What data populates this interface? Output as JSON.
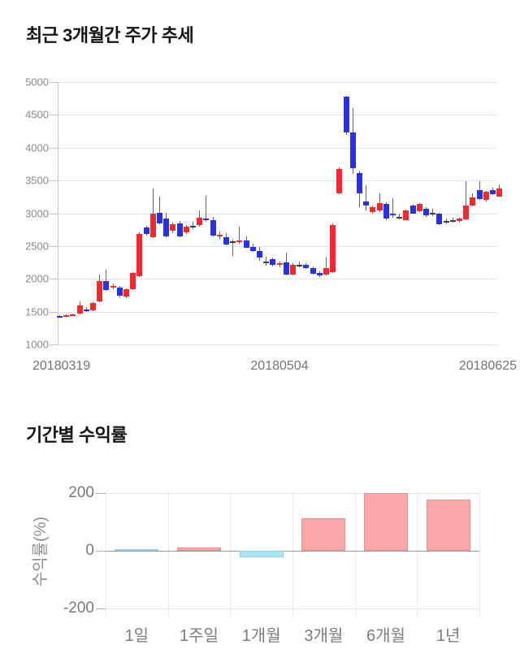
{
  "section1": {
    "title": "최근 3개월간 주가 추세"
  },
  "section2": {
    "title": "기간별 수익률"
  },
  "chart_data": [
    {
      "type": "candlestick",
      "title": "최근 3개월간 주가 추세",
      "ylim": [
        1000,
        5000
      ],
      "y_ticks": [
        5000,
        4500,
        4000,
        3500,
        3000,
        2500,
        2000,
        1500,
        1000
      ],
      "x_tick_labels": [
        "20180319",
        "20180504",
        "20180625"
      ],
      "grid": true,
      "up_color": "#EC2D30",
      "down_color": "#2B32DD",
      "doji_color": "#3c3c44",
      "wick_color": "#666666",
      "candles": [
        [
          1430,
          1445,
          1415,
          1425
        ],
        [
          1420,
          1465,
          1410,
          1445
        ],
        [
          1440,
          1470,
          1430,
          1460
        ],
        [
          1470,
          1660,
          1460,
          1595
        ],
        [
          1540,
          1575,
          1500,
          1525
        ],
        [
          1520,
          1645,
          1510,
          1630
        ],
        [
          1660,
          2070,
          1640,
          1970
        ],
        [
          1970,
          2140,
          1820,
          1830
        ],
        [
          1870,
          1935,
          1850,
          1890
        ],
        [
          1875,
          1895,
          1720,
          1740
        ],
        [
          1730,
          1860,
          1710,
          1850
        ],
        [
          1850,
          2110,
          1835,
          2090
        ],
        [
          2045,
          2705,
          2030,
          2690
        ],
        [
          2780,
          2805,
          2655,
          2680
        ],
        [
          2640,
          3380,
          2620,
          3000
        ],
        [
          3010,
          3250,
          2840,
          2850
        ],
        [
          2920,
          3005,
          2640,
          2650
        ],
        [
          2730,
          2855,
          2700,
          2830
        ],
        [
          2850,
          2885,
          2630,
          2650
        ],
        [
          2710,
          2825,
          2690,
          2800
        ],
        [
          2810,
          2870,
          2755,
          2810
        ],
        [
          2820,
          3050,
          2800,
          2930
        ],
        [
          2920,
          3270,
          2875,
          2890
        ],
        [
          2890,
          2945,
          2650,
          2660
        ],
        [
          2660,
          2725,
          2600,
          2670
        ],
        [
          2640,
          2700,
          2515,
          2530
        ],
        [
          2570,
          2605,
          2350,
          2570
        ],
        [
          2560,
          2800,
          2540,
          2590
        ],
        [
          2590,
          2645,
          2470,
          2480
        ],
        [
          2490,
          2535,
          2410,
          2420
        ],
        [
          2430,
          2485,
          2280,
          2330
        ],
        [
          2260,
          2345,
          2200,
          2260
        ],
        [
          2300,
          2325,
          2190,
          2210
        ],
        [
          2210,
          2265,
          2180,
          2240
        ],
        [
          2250,
          2400,
          2060,
          2070
        ],
        [
          2070,
          2235,
          2055,
          2210
        ],
        [
          2220,
          2265,
          2180,
          2220
        ],
        [
          2220,
          2245,
          2155,
          2170
        ],
        [
          2170,
          2185,
          2070,
          2080
        ],
        [
          2090,
          2115,
          2030,
          2050
        ],
        [
          2070,
          2330,
          2060,
          2160
        ],
        [
          2100,
          2845,
          2090,
          2820
        ],
        [
          3310,
          3705,
          3290,
          3670
        ],
        [
          4780,
          4795,
          4200,
          4230
        ],
        [
          4230,
          4600,
          3600,
          3690
        ],
        [
          3620,
          3645,
          3100,
          3300
        ],
        [
          3180,
          3430,
          3050,
          3120
        ],
        [
          3020,
          3125,
          3000,
          3100
        ],
        [
          3040,
          3300,
          3025,
          3160
        ],
        [
          3140,
          3165,
          2900,
          2920
        ],
        [
          3000,
          3230,
          2935,
          2970
        ],
        [
          2950,
          2995,
          2905,
          2950
        ],
        [
          2900,
          3055,
          2890,
          3040
        ],
        [
          3120,
          3135,
          2990,
          3000
        ],
        [
          3030,
          3155,
          3020,
          3140
        ],
        [
          3070,
          3095,
          2950,
          2970
        ],
        [
          3010,
          3065,
          2955,
          3010
        ],
        [
          2990,
          3005,
          2820,
          2830
        ],
        [
          2880,
          2925,
          2840,
          2880
        ],
        [
          2890,
          2935,
          2855,
          2890
        ],
        [
          2880,
          2935,
          2860,
          2920
        ],
        [
          2910,
          3490,
          2900,
          3120
        ],
        [
          3120,
          3305,
          3105,
          3240
        ],
        [
          3350,
          3490,
          3205,
          3220
        ],
        [
          3200,
          3345,
          3185,
          3330
        ],
        [
          3350,
          3385,
          3275,
          3290
        ],
        [
          3260,
          3440,
          3250,
          3380
        ]
      ]
    },
    {
      "type": "bar",
      "title": "기간별 수익률",
      "ylabel": "수익률(%)",
      "ylim": [
        -250,
        250
      ],
      "y_ticks": [
        200,
        0,
        -200
      ],
      "grid": true,
      "categories": [
        "1일",
        "1주일",
        "1개월",
        "3개월",
        "6개월",
        "1년"
      ],
      "values": [
        0,
        11,
        -22,
        113,
        199,
        178
      ],
      "positive_color": "#F9A7A7",
      "positive_border": "#E98F8F",
      "negative_color": "#ACE5EF",
      "negative_border": "#8FD2E2"
    }
  ]
}
